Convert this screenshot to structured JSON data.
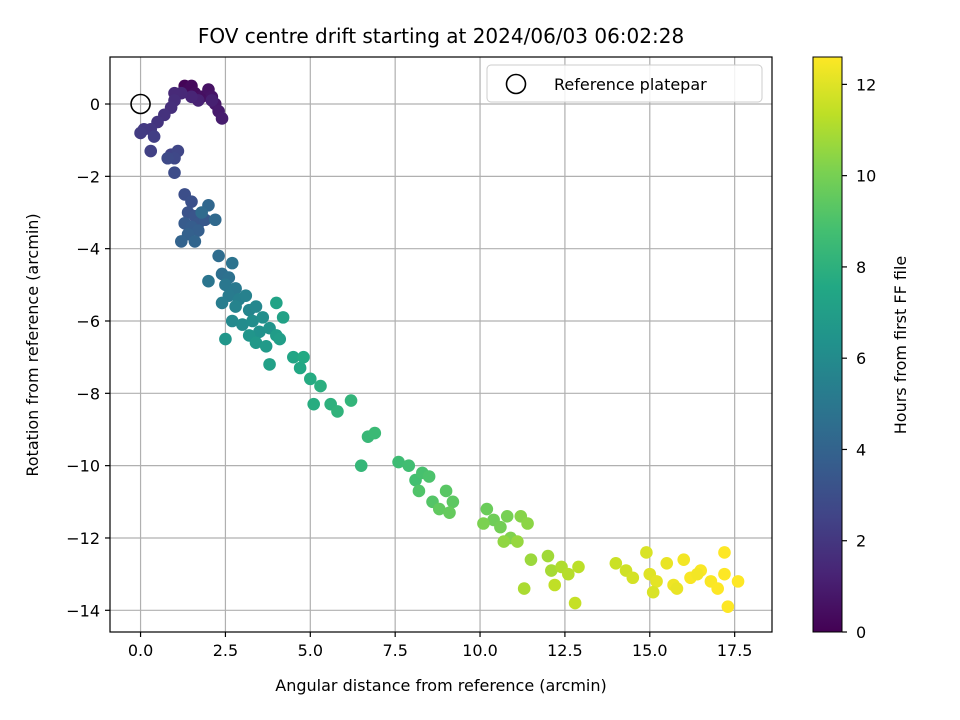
{
  "chart_data": {
    "type": "scatter",
    "title": "FOV centre drift starting at 2024/06/03 06:02:28",
    "xlabel": "Angular distance from reference (arcmin)",
    "ylabel": "Rotation from reference (arcmin)",
    "xlim": [
      -0.9,
      18.6
    ],
    "ylim": [
      -14.6,
      1.3
    ],
    "xticks": [
      0.0,
      2.5,
      5.0,
      7.5,
      10.0,
      12.5,
      15.0,
      17.5
    ],
    "xtick_labels": [
      "0.0",
      "2.5",
      "5.0",
      "7.5",
      "10.0",
      "12.5",
      "15.0",
      "17.5"
    ],
    "yticks": [
      0,
      -2,
      -4,
      -6,
      -8,
      -10,
      -12,
      -14
    ],
    "ytick_labels": [
      "0",
      "−2",
      "−4",
      "−6",
      "−8",
      "−10",
      "−12",
      "−14"
    ],
    "grid": true,
    "colormap": "viridis",
    "colorbar": {
      "label": "Hours from first FF file",
      "range": [
        0,
        12.6
      ],
      "ticks": [
        0,
        2,
        4,
        6,
        8,
        10,
        12
      ],
      "tick_labels": [
        "0",
        "2",
        "4",
        "6",
        "8",
        "10",
        "12"
      ]
    },
    "legend": {
      "position": "top-right",
      "entries": [
        {
          "label": "Reference platepar",
          "marker": "open-circle",
          "x": 0.0,
          "y": 0.0
        }
      ]
    },
    "series": [
      {
        "points": [
          [
            1.3,
            0.5,
            0.1
          ],
          [
            1.4,
            0.4,
            0.2
          ],
          [
            1.5,
            0.5,
            0.3
          ],
          [
            1.6,
            0.3,
            0.4
          ],
          [
            1.8,
            0.2,
            0.5
          ],
          [
            2.0,
            0.4,
            0.6
          ],
          [
            2.1,
            0.2,
            0.7
          ],
          [
            2.2,
            0.0,
            0.8
          ],
          [
            2.3,
            -0.2,
            0.9
          ],
          [
            2.4,
            -0.4,
            1.0
          ],
          [
            2.1,
            0.1,
            1.1
          ],
          [
            1.7,
            0.1,
            1.2
          ],
          [
            1.5,
            0.2,
            1.3
          ],
          [
            1.2,
            0.3,
            1.4
          ],
          [
            1.0,
            0.3,
            1.5
          ],
          [
            1.0,
            0.1,
            1.6
          ],
          [
            0.9,
            -0.1,
            1.7
          ],
          [
            0.7,
            -0.3,
            1.8
          ],
          [
            0.5,
            -0.5,
            1.9
          ],
          [
            0.3,
            -0.7,
            2.0
          ],
          [
            0.1,
            -0.7,
            2.1
          ],
          [
            0.0,
            -0.8,
            2.2
          ],
          [
            0.4,
            -0.9,
            2.3
          ],
          [
            0.3,
            -1.3,
            2.4
          ],
          [
            0.9,
            -1.4,
            2.5
          ],
          [
            1.1,
            -1.3,
            2.6
          ],
          [
            1.0,
            -1.5,
            2.7
          ],
          [
            0.8,
            -1.5,
            2.8
          ],
          [
            1.0,
            -1.9,
            2.9
          ],
          [
            1.3,
            -2.5,
            3.0
          ],
          [
            1.5,
            -2.7,
            3.1
          ],
          [
            1.4,
            -3.0,
            3.2
          ],
          [
            1.6,
            -3.1,
            3.3
          ],
          [
            1.7,
            -3.3,
            3.4
          ],
          [
            1.9,
            -3.2,
            3.5
          ],
          [
            1.3,
            -3.3,
            3.6
          ],
          [
            1.5,
            -3.4,
            3.7
          ],
          [
            1.7,
            -3.5,
            3.8
          ],
          [
            1.4,
            -3.6,
            3.9
          ],
          [
            1.2,
            -3.8,
            4.0
          ],
          [
            1.6,
            -3.8,
            4.1
          ],
          [
            2.0,
            -2.8,
            4.2
          ],
          [
            2.2,
            -3.2,
            4.3
          ],
          [
            1.8,
            -3.0,
            4.4
          ],
          [
            2.3,
            -4.2,
            4.5
          ],
          [
            2.4,
            -4.7,
            4.6
          ],
          [
            2.6,
            -4.8,
            4.7
          ],
          [
            2.7,
            -4.4,
            4.8
          ],
          [
            2.0,
            -4.9,
            4.9
          ],
          [
            2.5,
            -5.0,
            5.0
          ],
          [
            2.8,
            -5.1,
            5.1
          ],
          [
            2.6,
            -5.3,
            5.2
          ],
          [
            2.4,
            -5.5,
            5.3
          ],
          [
            2.9,
            -5.4,
            5.4
          ],
          [
            3.1,
            -5.3,
            5.5
          ],
          [
            2.8,
            -5.6,
            5.6
          ],
          [
            3.2,
            -5.7,
            5.7
          ],
          [
            3.4,
            -5.6,
            5.8
          ],
          [
            2.7,
            -6.0,
            5.9
          ],
          [
            3.0,
            -6.1,
            6.0
          ],
          [
            3.3,
            -6.0,
            6.1
          ],
          [
            3.6,
            -5.9,
            6.2
          ],
          [
            3.5,
            -6.3,
            6.3
          ],
          [
            3.8,
            -6.2,
            6.4
          ],
          [
            3.2,
            -6.4,
            6.5
          ],
          [
            2.5,
            -6.5,
            6.6
          ],
          [
            3.4,
            -6.6,
            6.7
          ],
          [
            3.7,
            -6.7,
            6.8
          ],
          [
            4.0,
            -6.4,
            6.9
          ],
          [
            4.1,
            -6.5,
            7.0
          ],
          [
            3.8,
            -7.2,
            7.1
          ],
          [
            4.2,
            -5.9,
            7.2
          ],
          [
            4.0,
            -5.5,
            7.3
          ],
          [
            4.5,
            -7.0,
            7.4
          ],
          [
            4.7,
            -7.3,
            7.5
          ],
          [
            4.8,
            -7.0,
            7.6
          ],
          [
            5.0,
            -7.6,
            7.7
          ],
          [
            5.1,
            -8.3,
            7.8
          ],
          [
            5.3,
            -7.8,
            7.9
          ],
          [
            5.6,
            -8.3,
            8.0
          ],
          [
            5.8,
            -8.5,
            8.1
          ],
          [
            6.2,
            -8.2,
            8.2
          ],
          [
            6.5,
            -10.0,
            8.3
          ],
          [
            6.7,
            -9.2,
            8.4
          ],
          [
            6.9,
            -9.1,
            8.5
          ],
          [
            7.6,
            -9.9,
            8.6
          ],
          [
            7.9,
            -10.0,
            8.7
          ],
          [
            8.1,
            -10.4,
            8.8
          ],
          [
            8.3,
            -10.2,
            8.9
          ],
          [
            8.5,
            -10.3,
            9.0
          ],
          [
            8.2,
            -10.7,
            9.1
          ],
          [
            8.6,
            -11.0,
            9.2
          ],
          [
            9.0,
            -10.7,
            9.3
          ],
          [
            9.2,
            -11.0,
            9.4
          ],
          [
            8.8,
            -11.2,
            9.5
          ],
          [
            9.1,
            -11.3,
            9.6
          ],
          [
            10.2,
            -11.2,
            9.7
          ],
          [
            10.4,
            -11.5,
            9.8
          ],
          [
            10.6,
            -11.7,
            9.9
          ],
          [
            10.8,
            -11.4,
            10.0
          ],
          [
            10.1,
            -11.6,
            10.1
          ],
          [
            10.9,
            -12.0,
            10.2
          ],
          [
            11.2,
            -11.4,
            10.3
          ],
          [
            11.4,
            -11.6,
            10.4
          ],
          [
            10.7,
            -12.1,
            10.5
          ],
          [
            11.1,
            -12.1,
            10.6
          ],
          [
            11.5,
            -12.6,
            10.7
          ],
          [
            12.0,
            -12.5,
            10.8
          ],
          [
            12.1,
            -12.9,
            10.9
          ],
          [
            11.3,
            -13.4,
            11.0
          ],
          [
            12.4,
            -12.8,
            11.1
          ],
          [
            12.6,
            -13.0,
            11.2
          ],
          [
            12.9,
            -12.8,
            11.3
          ],
          [
            12.2,
            -13.3,
            11.4
          ],
          [
            12.8,
            -13.8,
            11.5
          ],
          [
            14.0,
            -12.7,
            11.6
          ],
          [
            14.3,
            -12.9,
            11.7
          ],
          [
            14.5,
            -13.1,
            11.8
          ],
          [
            14.9,
            -12.4,
            11.9
          ],
          [
            15.0,
            -13.0,
            12.0
          ],
          [
            15.2,
            -13.2,
            12.1
          ],
          [
            15.5,
            -12.7,
            12.2
          ],
          [
            15.7,
            -13.3,
            12.3
          ],
          [
            16.0,
            -12.6,
            12.4
          ],
          [
            16.2,
            -13.1,
            12.5
          ],
          [
            16.5,
            -12.9,
            12.55
          ],
          [
            16.8,
            -13.2,
            12.55
          ],
          [
            17.0,
            -13.4,
            12.6
          ],
          [
            17.2,
            -13.0,
            12.6
          ],
          [
            17.3,
            -13.9,
            12.6
          ],
          [
            17.2,
            -12.4,
            12.6
          ],
          [
            17.6,
            -13.2,
            12.6
          ],
          [
            15.1,
            -13.5,
            11.9
          ],
          [
            15.8,
            -13.4,
            12.2
          ],
          [
            16.4,
            -13.0,
            12.4
          ]
        ]
      }
    ]
  },
  "colors": {
    "grid": "#b0b0b0",
    "axes": "#000000",
    "viridis": [
      "#440154",
      "#482475",
      "#414487",
      "#355f8d",
      "#2a788e",
      "#21918c",
      "#22a884",
      "#44bf70",
      "#7ad151",
      "#bddf26",
      "#fde725"
    ]
  }
}
